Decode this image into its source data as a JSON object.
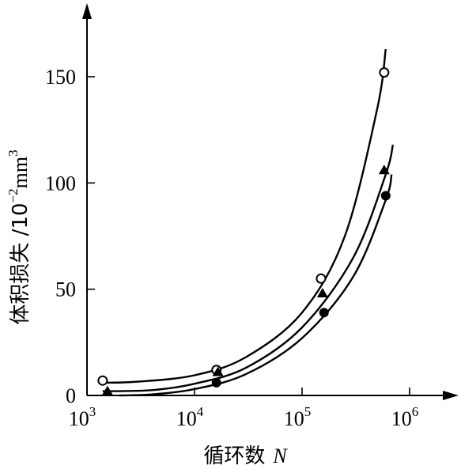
{
  "chart_data": {
    "type": "line",
    "xlabel": {
      "text": "循环数",
      "var": "N"
    },
    "ylabel": {
      "text": "体积损失 /10",
      "exp": "−2",
      "unit": "mm",
      "unit_exp": "3"
    },
    "x_scale": "log",
    "xlim": [
      1000,
      1000000
    ],
    "ylim": [
      0,
      180
    ],
    "x_ticks": [
      {
        "value": 1000,
        "base": "10",
        "exp": "3"
      },
      {
        "value": 10000,
        "base": "10",
        "exp": "4"
      },
      {
        "value": 100000,
        "base": "10",
        "exp": "5"
      },
      {
        "value": 1000000,
        "base": "10",
        "exp": "6"
      }
    ],
    "y_ticks": [
      {
        "value": 0,
        "label": "0"
      },
      {
        "value": 50,
        "label": "50"
      },
      {
        "value": 100,
        "label": "100"
      },
      {
        "value": 150,
        "label": "150"
      }
    ],
    "grid": false,
    "legend": "none",
    "series": [
      {
        "marker": "open-circle",
        "color": "#000000",
        "points": [
          {
            "x": 1400,
            "y": 7
          },
          {
            "x": 16000,
            "y": 12
          },
          {
            "x": 150000,
            "y": 55
          },
          {
            "x": 580000,
            "y": 152
          }
        ],
        "curve": [
          {
            "x": 1400,
            "y": 6
          },
          {
            "x": 3000,
            "y": 6.5
          },
          {
            "x": 10000,
            "y": 9.5
          },
          {
            "x": 30000,
            "y": 18
          },
          {
            "x": 100000,
            "y": 39
          },
          {
            "x": 250000,
            "y": 75
          },
          {
            "x": 500000,
            "y": 135
          },
          {
            "x": 600000,
            "y": 163
          }
        ]
      },
      {
        "marker": "filled-triangle",
        "color": "#000000",
        "points": [
          {
            "x": 1550,
            "y": 2
          },
          {
            "x": 16500,
            "y": 11
          },
          {
            "x": 155000,
            "y": 48
          },
          {
            "x": 580000,
            "y": 106
          }
        ],
        "curve": [
          {
            "x": 1400,
            "y": 2
          },
          {
            "x": 4000,
            "y": 2.5
          },
          {
            "x": 10000,
            "y": 5.5
          },
          {
            "x": 30000,
            "y": 13
          },
          {
            "x": 100000,
            "y": 32
          },
          {
            "x": 300000,
            "y": 65
          },
          {
            "x": 600000,
            "y": 104
          },
          {
            "x": 700000,
            "y": 118
          }
        ]
      },
      {
        "marker": "filled-circle",
        "color": "#000000",
        "points": [
          {
            "x": 16000,
            "y": 6
          },
          {
            "x": 160000,
            "y": 39
          },
          {
            "x": 600000,
            "y": 94
          }
        ],
        "curve": [
          {
            "x": 2000,
            "y": 0
          },
          {
            "x": 4000,
            "y": 0.5
          },
          {
            "x": 10000,
            "y": 3
          },
          {
            "x": 30000,
            "y": 10
          },
          {
            "x": 100000,
            "y": 27
          },
          {
            "x": 300000,
            "y": 56
          },
          {
            "x": 600000,
            "y": 92
          },
          {
            "x": 680000,
            "y": 104
          }
        ]
      }
    ]
  }
}
